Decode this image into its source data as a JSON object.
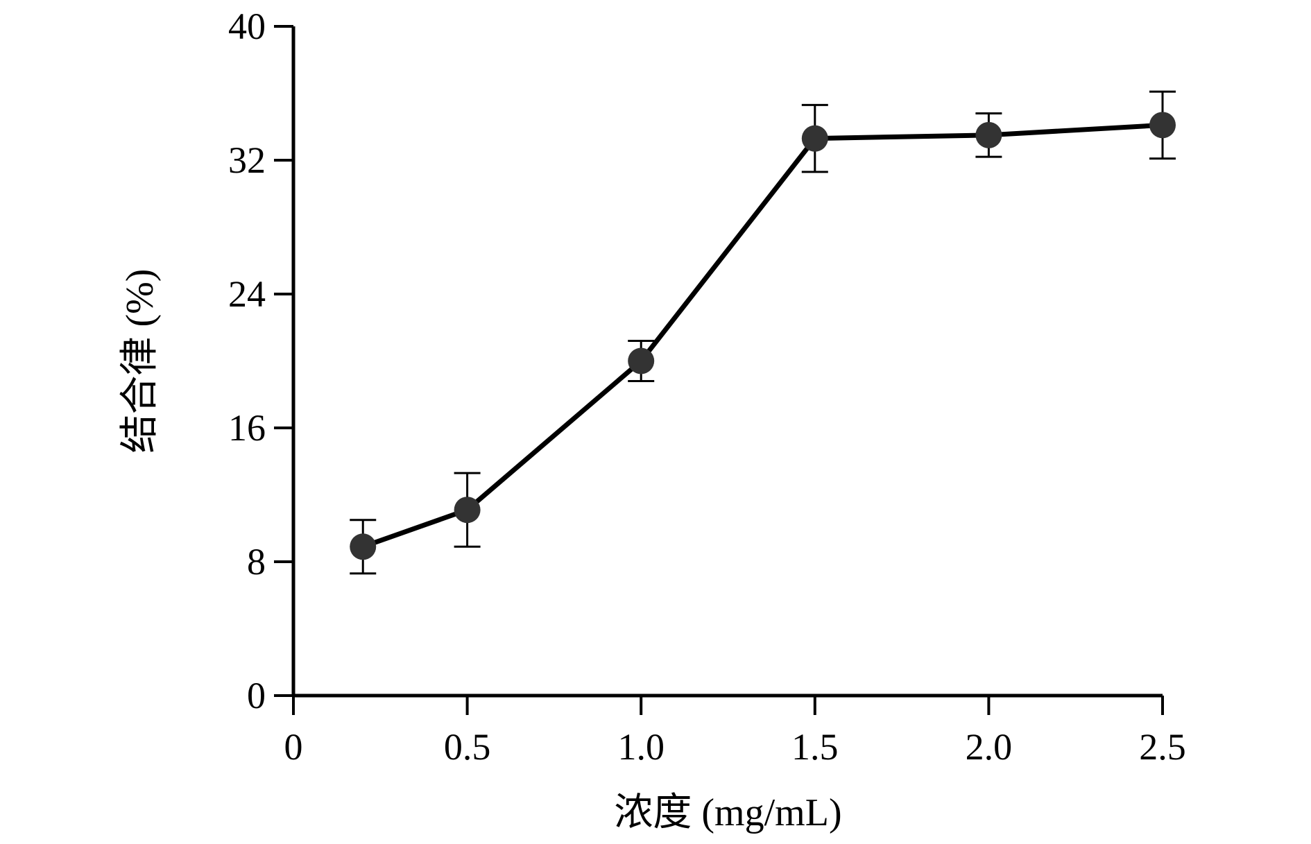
{
  "chart_data": {
    "type": "line",
    "title": "",
    "xlabel": "浓度 (mg/mL)",
    "ylabel": "结合律 (%)",
    "xlim": [
      0,
      2.5
    ],
    "ylim": [
      0,
      40
    ],
    "x_ticks": [
      0,
      0.5,
      1.0,
      1.5,
      2.0,
      2.5
    ],
    "x_tick_labels": [
      "0",
      "0.5",
      "1.0",
      "1.5",
      "2.0",
      "2.5"
    ],
    "y_ticks": [
      0,
      8,
      16,
      24,
      32,
      40
    ],
    "y_tick_labels": [
      "0",
      "8",
      "16",
      "24",
      "32",
      "40"
    ],
    "grid": false,
    "legend": "none",
    "series": [
      {
        "x": [
          0.2,
          0.5,
          1.0,
          1.5,
          2.0,
          2.5
        ],
        "y": [
          8.9,
          11.1,
          20.0,
          33.3,
          33.5,
          34.1
        ],
        "error": [
          1.6,
          2.2,
          1.2,
          2.0,
          1.3,
          2.0
        ],
        "color": "#333333"
      }
    ]
  }
}
